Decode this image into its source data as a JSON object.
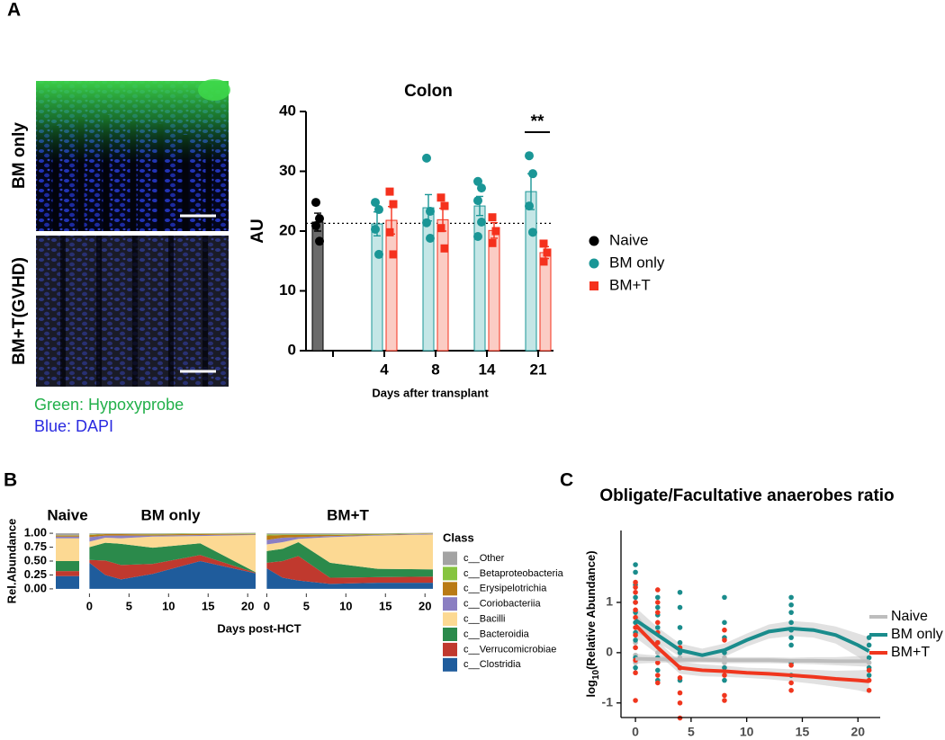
{
  "panel_labels": [
    "A",
    "B",
    "C"
  ],
  "images": {
    "labels": [
      "BM only",
      "BM+T(GVHD)"
    ],
    "stain_legend": [
      "Green: Hypoxyprobe",
      "Blue: DAPI"
    ]
  },
  "chart_data": [
    {
      "type": "bar",
      "title": "Colon",
      "ylabel": "AU",
      "xlabel": "Days after transplant",
      "categories": [
        null,
        "4",
        "8",
        "14",
        "21"
      ],
      "ylim": [
        0,
        40
      ],
      "yticks": [
        0,
        10,
        20,
        30,
        40
      ],
      "ref_line": 21.3,
      "annotation": "**",
      "legend": "right",
      "series": [
        {
          "name": "Naive",
          "color": "#000000",
          "fill": "#6b6b6b",
          "marker": "circle",
          "values": [
            21.5,
            null,
            null,
            null,
            null
          ],
          "errors": [
            1.5,
            null,
            null,
            null,
            null
          ],
          "points": [
            [
              24.8,
              22.1,
              20.9,
              18.3
            ],
            null,
            null,
            null,
            null
          ]
        },
        {
          "name": "BM only",
          "color": "#1a9696",
          "fill": "#c4e6e6",
          "marker": "circle",
          "values": [
            null,
            21.2,
            23.9,
            24.2,
            26.6
          ],
          "errors": [
            null,
            2.0,
            2.2,
            1.6,
            3.0
          ],
          "points": [
            null,
            [
              24.8,
              23.6,
              20.3,
              16.1
            ],
            [
              32.2,
              23.3,
              21.4,
              18.8
            ],
            [
              28.3,
              27.2,
              25.1,
              21.5,
              19.1
            ],
            [
              32.6,
              29.6,
              24.2,
              19.8
            ]
          ]
        },
        {
          "name": "BM+T",
          "color": "#f5311d",
          "fill": "#fbccc4",
          "marker": "square",
          "values": [
            null,
            21.8,
            21.9,
            20.1,
            16.4
          ],
          "errors": [
            null,
            2.3,
            1.9,
            1.3,
            1.0
          ],
          "points": [
            null,
            [
              26.6,
              24.5,
              19.8,
              16.1
            ],
            [
              25.6,
              24.2,
              20.5,
              17.1
            ],
            [
              22.3,
              20.0,
              18.0
            ],
            [
              17.9,
              16.4,
              14.9
            ]
          ]
        }
      ]
    },
    {
      "type": "area",
      "ylabel": "Rel.Abundance",
      "xlabel": "Days post-HCT",
      "legend_title": "Class",
      "legend": "right",
      "ylim": [
        -0.05,
        1.05
      ],
      "yticks": [
        {
          "value": 0,
          "label": "0.00"
        },
        {
          "value": 0.25,
          "label": "0.25"
        },
        {
          "value": 0.5,
          "label": "0.50"
        },
        {
          "value": 0.75,
          "label": "0.75"
        },
        {
          "value": 1,
          "label": "1.00"
        }
      ],
      "xlim": [
        -0.5,
        21
      ],
      "xticks": [
        0,
        5,
        10,
        15,
        20
      ],
      "series": [
        {
          "name": "c__Other",
          "color": "#a3a3a3"
        },
        {
          "name": "c__Betaproteobacteria",
          "color": "#86c440"
        },
        {
          "name": "c__Erysipelotrichia",
          "color": "#b97a14"
        },
        {
          "name": "c__Coriobacteriia",
          "color": "#8b7fc2"
        },
        {
          "name": "c__Bacilli",
          "color": "#fcd993"
        },
        {
          "name": "c__Bacteroidia",
          "color": "#2b8a4b"
        },
        {
          "name": "c__Verrucomicrobiae",
          "color": "#c0392e"
        },
        {
          "name": "c__Clostridia",
          "color": "#1f5c9c"
        }
      ],
      "facets": [
        {
          "title": "Naive",
          "values": [
            [
              0.035
            ],
            [
              0.005
            ],
            [
              0.02
            ],
            [
              0.03
            ],
            [
              0.41
            ],
            [
              0.18
            ],
            [
              0.09
            ],
            [
              0.23
            ]
          ]
        },
        {
          "title": "BM only",
          "x": [
            0,
            2,
            4,
            8,
            14,
            21
          ],
          "values": [
            [
              0.02,
              0.01,
              0.01,
              0.01,
              0.005,
              0.01
            ],
            [
              0.01,
              0.005,
              0.005,
              0.01,
              0.005,
              0.01
            ],
            [
              0.04,
              0.025,
              0.025,
              0.02,
              0.02,
              0.01
            ],
            [
              0.08,
              0.04,
              0.05,
              0.02,
              0.02,
              0.01
            ],
            [
              0.1,
              0.09,
              0.1,
              0.2,
              0.13,
              0.67
            ],
            [
              0.23,
              0.32,
              0.38,
              0.29,
              0.21,
              0.01
            ],
            [
              0.05,
              0.26,
              0.26,
              0.18,
              0.11,
              0.01
            ],
            [
              0.47,
              0.25,
              0.17,
              0.27,
              0.5,
              0.28
            ]
          ]
        },
        {
          "title": "BM+T",
          "x": [
            0,
            2,
            4,
            8,
            14,
            21
          ],
          "values": [
            [
              0.02,
              0.02,
              0.02,
              0.02,
              0.01,
              0.01
            ],
            [
              0.02,
              0.01,
              0.01,
              0.01,
              0.01,
              0.005
            ],
            [
              0.08,
              0.05,
              0.04,
              0.02,
              0.01,
              0.005
            ],
            [
              0.08,
              0.08,
              0.03,
              0.02,
              0.01,
              0.01
            ],
            [
              0.12,
              0.12,
              0.06,
              0.46,
              0.6,
              0.63
            ],
            [
              0.21,
              0.22,
              0.25,
              0.27,
              0.15,
              0.13
            ],
            [
              0.1,
              0.3,
              0.44,
              0.11,
              0.1,
              0.11
            ],
            [
              0.37,
              0.2,
              0.15,
              0.09,
              0.11,
              0.11
            ]
          ]
        }
      ]
    },
    {
      "type": "scatter_smooth",
      "title": "Obligate/Facultative anaerobes ratio",
      "ylabel": {
        "text": "log",
        "subscript": "10",
        "rest": "(Relative Abundance)"
      },
      "xlim": [
        -1.3,
        22
      ],
      "ylim": [
        -1.29,
        2.43
      ],
      "xticks": [
        0,
        5,
        10,
        15,
        20
      ],
      "yticks": [
        -1,
        0,
        1
      ],
      "ribbon_color": "#bdbdbd",
      "legend": "right",
      "series": [
        {
          "name": "Naive",
          "color": "#bdbdbd",
          "x": [
            0,
            2,
            4,
            6,
            8,
            10,
            12,
            14,
            16,
            18,
            20,
            21
          ],
          "values": [
            -0.12,
            -0.13,
            -0.14,
            -0.14,
            -0.15,
            -0.15,
            -0.15,
            -0.16,
            -0.16,
            -0.17,
            -0.17,
            -0.17
          ],
          "lower": [
            -0.22,
            -0.2,
            -0.2,
            -0.2,
            -0.21,
            -0.21,
            -0.21,
            -0.22,
            -0.23,
            -0.25,
            -0.27,
            -0.28
          ],
          "upper": [
            -0.02,
            -0.06,
            -0.08,
            -0.08,
            -0.09,
            -0.09,
            -0.09,
            -0.1,
            -0.09,
            -0.09,
            -0.07,
            -0.06
          ],
          "points": [
            [
              0,
              0.2
            ],
            [
              0,
              0.1
            ],
            [
              0,
              -0.05
            ],
            [
              0,
              -0.2
            ],
            [
              2,
              0.0
            ],
            [
              2,
              -0.15
            ],
            [
              4,
              -0.1
            ],
            [
              8,
              -0.1
            ],
            [
              8,
              -0.2
            ],
            [
              14,
              -0.2
            ],
            [
              21,
              -0.2
            ],
            [
              21,
              -0.35
            ]
          ]
        },
        {
          "name": "BM only",
          "color": "#1a8c8c",
          "x": [
            0,
            2,
            4,
            6,
            8,
            10,
            12,
            14,
            16,
            18,
            20,
            21
          ],
          "values": [
            0.65,
            0.35,
            0.05,
            -0.05,
            0.05,
            0.25,
            0.42,
            0.48,
            0.45,
            0.35,
            0.15,
            0.03
          ],
          "lower": [
            0.4,
            0.2,
            -0.08,
            -0.18,
            -0.08,
            0.12,
            0.28,
            0.33,
            0.3,
            0.18,
            -0.08,
            -0.25
          ],
          "upper": [
            0.9,
            0.5,
            0.18,
            0.08,
            0.18,
            0.38,
            0.56,
            0.63,
            0.6,
            0.52,
            0.38,
            0.31
          ],
          "points": [
            [
              0,
              1.75
            ],
            [
              0,
              1.6
            ],
            [
              0,
              1.35
            ],
            [
              0,
              1.1
            ],
            [
              0,
              1.0
            ],
            [
              0,
              0.8
            ],
            [
              0,
              0.6
            ],
            [
              0,
              0.4
            ],
            [
              0,
              0.25
            ],
            [
              0,
              -0.1
            ],
            [
              0,
              -0.3
            ],
            [
              2,
              1.1
            ],
            [
              2,
              0.9
            ],
            [
              2,
              0.75
            ],
            [
              2,
              0.5
            ],
            [
              2,
              0.2
            ],
            [
              2,
              -0.1
            ],
            [
              2,
              -0.35
            ],
            [
              2,
              -0.55
            ],
            [
              4,
              1.2
            ],
            [
              4,
              0.9
            ],
            [
              4,
              0.5
            ],
            [
              4,
              0.2
            ],
            [
              4,
              0.0
            ],
            [
              4,
              -0.3
            ],
            [
              4,
              -0.55
            ],
            [
              8,
              1.1
            ],
            [
              8,
              0.6
            ],
            [
              8,
              0.3
            ],
            [
              8,
              0.0
            ],
            [
              8,
              -0.3
            ],
            [
              8,
              -0.55
            ],
            [
              14,
              1.1
            ],
            [
              14,
              0.95
            ],
            [
              14,
              0.8
            ],
            [
              14,
              0.6
            ],
            [
              14,
              0.45
            ],
            [
              14,
              0.3
            ],
            [
              14,
              0.15
            ],
            [
              14,
              -0.2
            ],
            [
              14,
              -0.45
            ],
            [
              21,
              0.3
            ],
            [
              21,
              0.15
            ],
            [
              21,
              -0.1
            ],
            [
              21,
              -0.3
            ],
            [
              21,
              -0.45
            ]
          ]
        },
        {
          "name": "BM+T",
          "color": "#f0361e",
          "x": [
            0,
            2,
            4,
            6,
            8,
            10,
            12,
            14,
            16,
            18,
            20,
            21
          ],
          "values": [
            0.55,
            0.1,
            -0.3,
            -0.35,
            -0.37,
            -0.4,
            -0.42,
            -0.45,
            -0.48,
            -0.52,
            -0.55,
            -0.57
          ],
          "lower": [
            0.3,
            -0.03,
            -0.42,
            -0.47,
            -0.48,
            -0.5,
            -0.53,
            -0.57,
            -0.62,
            -0.68,
            -0.75,
            -0.8
          ],
          "upper": [
            0.8,
            0.23,
            -0.18,
            -0.23,
            -0.26,
            -0.3,
            -0.31,
            -0.33,
            -0.34,
            -0.36,
            -0.35,
            -0.34
          ],
          "points": [
            [
              0,
              1.4
            ],
            [
              0,
              1.3
            ],
            [
              0,
              1.2
            ],
            [
              0,
              1.0
            ],
            [
              0,
              0.85
            ],
            [
              0,
              0.7
            ],
            [
              0,
              0.5
            ],
            [
              0,
              0.35
            ],
            [
              0,
              0.1
            ],
            [
              0,
              -0.15
            ],
            [
              0,
              -0.4
            ],
            [
              0,
              -0.95
            ],
            [
              2,
              1.25
            ],
            [
              2,
              1.0
            ],
            [
              2,
              0.8
            ],
            [
              2,
              0.6
            ],
            [
              2,
              0.4
            ],
            [
              2,
              0.2
            ],
            [
              2,
              -0.2
            ],
            [
              2,
              -0.45
            ],
            [
              2,
              -0.6
            ],
            [
              4,
              0.1
            ],
            [
              4,
              -0.3
            ],
            [
              4,
              -0.5
            ],
            [
              4,
              -0.8
            ],
            [
              4,
              -1.0
            ],
            [
              4,
              -1.3
            ],
            [
              8,
              0.45
            ],
            [
              8,
              0.25
            ],
            [
              8,
              -0.45
            ],
            [
              8,
              -0.85
            ],
            [
              8,
              -0.95
            ],
            [
              14,
              -0.25
            ],
            [
              14,
              -0.6
            ],
            [
              14,
              -0.75
            ],
            [
              21,
              -0.35
            ],
            [
              21,
              -0.55
            ],
            [
              21,
              -0.75
            ]
          ]
        }
      ]
    }
  ]
}
